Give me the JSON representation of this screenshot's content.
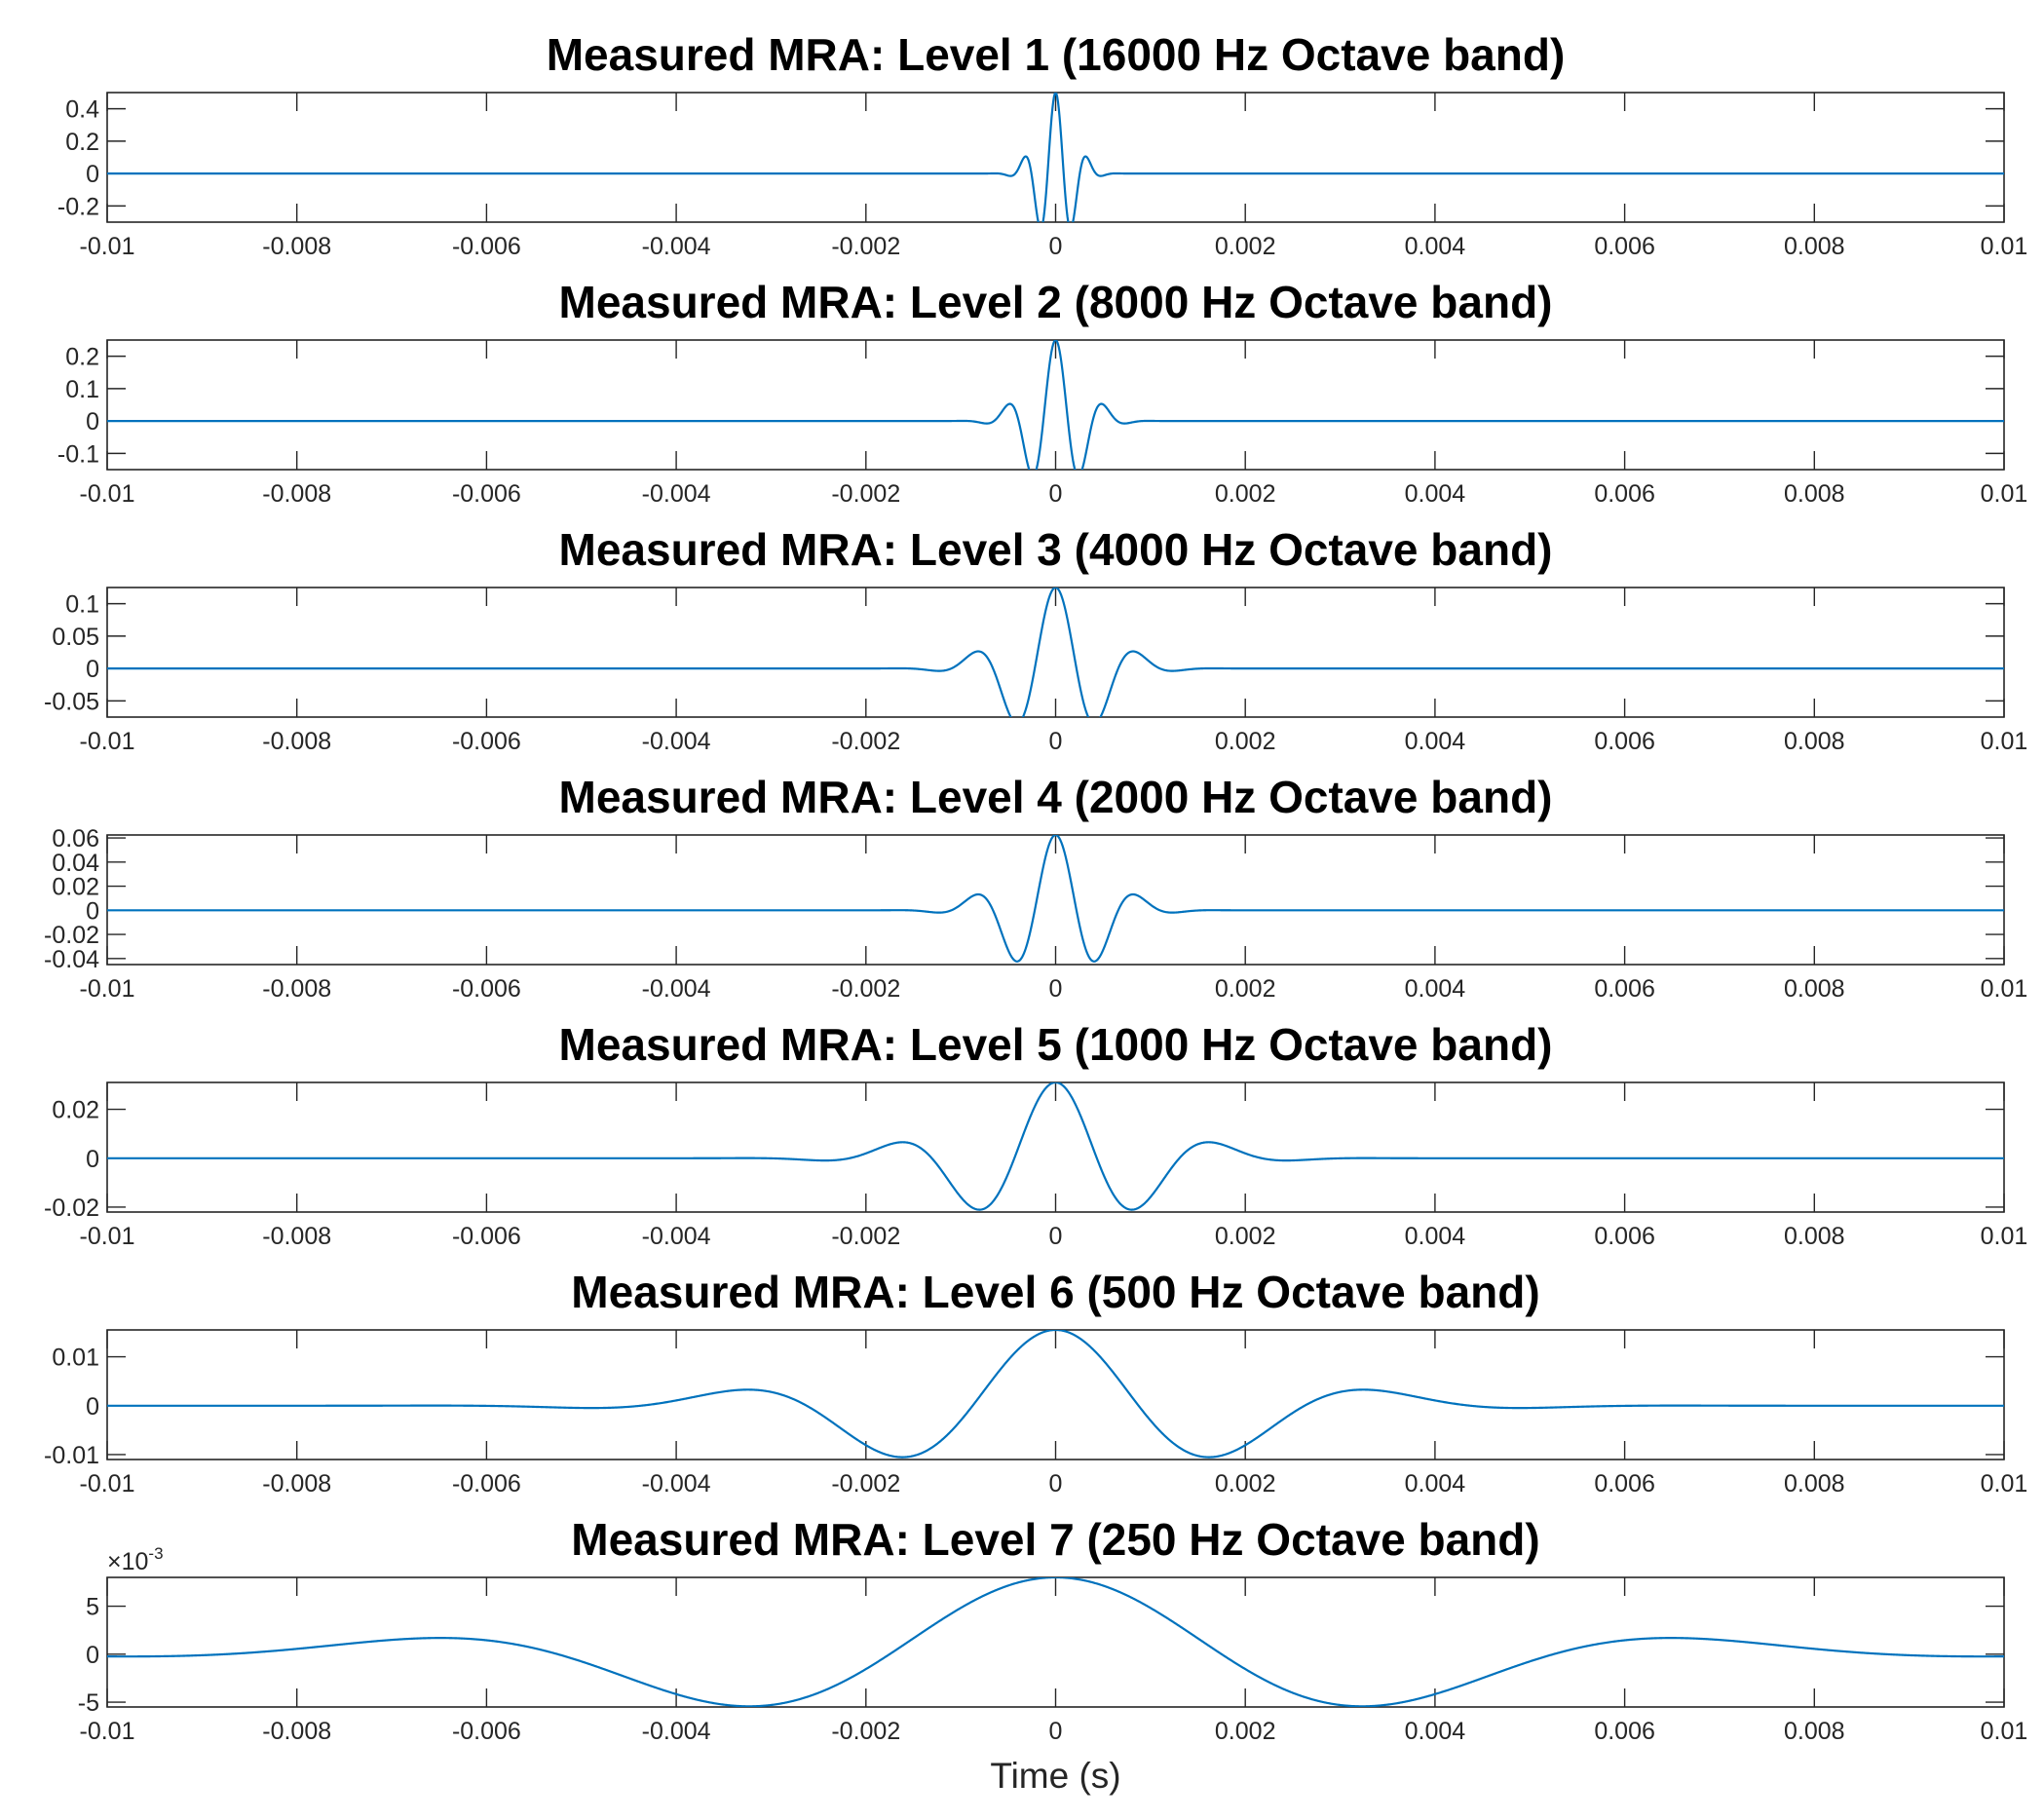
{
  "chart_data": [
    {
      "type": "line",
      "title": "Measured MRA: Level 1 (16000 Hz Octave band)",
      "xlabel": "",
      "xlim": [
        -0.01,
        0.01
      ],
      "ylim": [
        -0.3,
        0.5
      ],
      "xticks": [
        -0.01,
        -0.008,
        -0.006,
        -0.004,
        -0.002,
        0,
        0.002,
        0.004,
        0.006,
        0.008,
        0.01
      ],
      "xtick_labels": [
        "-0.01",
        "-0.008",
        "-0.006",
        "-0.004",
        "-0.002",
        "0",
        "0.002",
        "0.004",
        "0.006",
        "0.008",
        "0.01"
      ],
      "yticks": [
        -0.2,
        0,
        0.2,
        0.4
      ],
      "ytick_labels": [
        "-0.2",
        "0",
        "0.2",
        "0.4"
      ],
      "exponent_label": "",
      "grid": false,
      "color": "#0072BD",
      "wavelet": {
        "peak": 0.5,
        "center_freq_hz": 16000,
        "period_s": 0.00017
      }
    },
    {
      "type": "line",
      "title": "Measured MRA: Level 2 (8000 Hz Octave band)",
      "xlabel": "",
      "xlim": [
        -0.01,
        0.01
      ],
      "ylim": [
        -0.15,
        0.25
      ],
      "xticks": [
        -0.01,
        -0.008,
        -0.006,
        -0.004,
        -0.002,
        0,
        0.002,
        0.004,
        0.006,
        0.008,
        0.01
      ],
      "xtick_labels": [
        "-0.01",
        "-0.008",
        "-0.006",
        "-0.004",
        "-0.002",
        "0",
        "0.002",
        "0.004",
        "0.006",
        "0.008",
        "0.01"
      ],
      "yticks": [
        -0.1,
        0,
        0.1,
        0.2
      ],
      "ytick_labels": [
        "-0.1",
        "0",
        "0.1",
        "0.2"
      ],
      "exponent_label": "",
      "grid": false,
      "color": "#0072BD",
      "wavelet": {
        "peak": 0.25,
        "center_freq_hz": 8000,
        "period_s": 0.00026
      }
    },
    {
      "type": "line",
      "title": "Measured MRA: Level 3 (4000 Hz Octave band)",
      "xlabel": "",
      "xlim": [
        -0.01,
        0.01
      ],
      "ylim": [
        -0.075,
        0.125
      ],
      "xticks": [
        -0.01,
        -0.008,
        -0.006,
        -0.004,
        -0.002,
        0,
        0.002,
        0.004,
        0.006,
        0.008,
        0.01
      ],
      "xtick_labels": [
        "-0.01",
        "-0.008",
        "-0.006",
        "-0.004",
        "-0.002",
        "0",
        "0.002",
        "0.004",
        "0.006",
        "0.008",
        "0.01"
      ],
      "yticks": [
        -0.05,
        0,
        0.05,
        0.1
      ],
      "ytick_labels": [
        "-0.05",
        "0",
        "0.05",
        "0.1"
      ],
      "exponent_label": "",
      "grid": false,
      "color": "#0072BD",
      "wavelet": {
        "peak": 0.125,
        "center_freq_hz": 4000,
        "period_s": 0.00044
      }
    },
    {
      "type": "line",
      "title": "Measured MRA: Level 4 (2000 Hz Octave band)",
      "xlabel": "",
      "xlim": [
        -0.01,
        0.01
      ],
      "ylim": [
        -0.045,
        0.0625
      ],
      "xticks": [
        -0.01,
        -0.008,
        -0.006,
        -0.004,
        -0.002,
        0,
        0.002,
        0.004,
        0.006,
        0.008,
        0.01
      ],
      "xtick_labels": [
        "-0.01",
        "-0.008",
        "-0.006",
        "-0.004",
        "-0.002",
        "0",
        "0.002",
        "0.004",
        "0.006",
        "0.008",
        "0.01"
      ],
      "yticks": [
        -0.04,
        -0.02,
        0,
        0.02,
        0.04,
        0.06
      ],
      "ytick_labels": [
        "-0.04",
        "-0.02",
        "0",
        "0.02",
        "0.04",
        "0.06"
      ],
      "exponent_label": "",
      "grid": false,
      "color": "#0072BD",
      "wavelet": {
        "peak": 0.0625,
        "center_freq_hz": 2000,
        "period_s": 0.00044
      }
    },
    {
      "type": "line",
      "title": "Measured MRA: Level 5 (1000 Hz Octave band)",
      "xlabel": "",
      "xlim": [
        -0.01,
        0.01
      ],
      "ylim": [
        -0.022,
        0.031
      ],
      "xticks": [
        -0.01,
        -0.008,
        -0.006,
        -0.004,
        -0.002,
        0,
        0.002,
        0.004,
        0.006,
        0.008,
        0.01
      ],
      "xtick_labels": [
        "-0.01",
        "-0.008",
        "-0.006",
        "-0.004",
        "-0.002",
        "0",
        "0.002",
        "0.004",
        "0.006",
        "0.008",
        "0.01"
      ],
      "yticks": [
        -0.02,
        0,
        0.02
      ],
      "ytick_labels": [
        "-0.02",
        "0",
        "0.02"
      ],
      "exponent_label": "",
      "grid": false,
      "color": "#0072BD",
      "wavelet": {
        "peak": 0.031,
        "center_freq_hz": 1000,
        "period_s": 0.00087
      }
    },
    {
      "type": "line",
      "title": "Measured MRA: Level 6 (500 Hz Octave band)",
      "xlabel": "",
      "xlim": [
        -0.01,
        0.01
      ],
      "ylim": [
        -0.011,
        0.0155
      ],
      "xticks": [
        -0.01,
        -0.008,
        -0.006,
        -0.004,
        -0.002,
        0,
        0.002,
        0.004,
        0.006,
        0.008,
        0.01
      ],
      "xtick_labels": [
        "-0.01",
        "-0.008",
        "-0.006",
        "-0.004",
        "-0.002",
        "0",
        "0.002",
        "0.004",
        "0.006",
        "0.008",
        "0.01"
      ],
      "yticks": [
        -0.01,
        0,
        0.01
      ],
      "ytick_labels": [
        "-0.01",
        "0",
        "0.01"
      ],
      "exponent_label": "",
      "grid": false,
      "color": "#0072BD",
      "wavelet": {
        "peak": 0.0155,
        "center_freq_hz": 500,
        "period_s": 0.00175
      }
    },
    {
      "type": "line",
      "title": "Measured MRA: Level 7 (250 Hz Octave band)",
      "xlabel": "Time (s)",
      "xlim": [
        -0.01,
        0.01
      ],
      "ylim": [
        -5.5,
        8
      ],
      "xticks": [
        -0.01,
        -0.008,
        -0.006,
        -0.004,
        -0.002,
        0,
        0.002,
        0.004,
        0.006,
        0.008,
        0.01
      ],
      "xtick_labels": [
        "-0.01",
        "-0.008",
        "-0.006",
        "-0.004",
        "-0.002",
        "0",
        "0.002",
        "0.004",
        "0.006",
        "0.008",
        "0.01"
      ],
      "yticks": [
        -5,
        0,
        5
      ],
      "ytick_labels": [
        "-5",
        "0",
        "5"
      ],
      "exponent_label": {
        "base": "×10",
        "power": "-3"
      },
      "grid": false,
      "color": "#0072BD",
      "wavelet": {
        "peak": 8,
        "center_freq_hz": 250,
        "period_s": 0.0035
      }
    }
  ]
}
